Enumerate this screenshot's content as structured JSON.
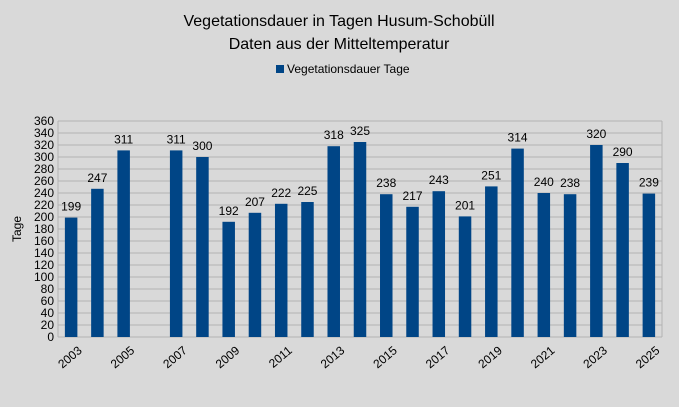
{
  "chart_data": {
    "type": "bar",
    "title": "Vegetationsdauer in Tagen Husum-Schobüll",
    "subtitle": "Daten aus der Mitteltemperatur",
    "ylabel": "Tage",
    "xlabel": "",
    "ylim": [
      0,
      360
    ],
    "ytick_step": 20,
    "grid": true,
    "legend_position": "top-center",
    "colors": {
      "bar": "#004586",
      "background": "#d9d9d9",
      "plot_background": "#d9d9d9",
      "grid": "#b3b3b3"
    },
    "categories": [
      2003,
      2004,
      2005,
      2006,
      2007,
      2008,
      2009,
      2010,
      2011,
      2012,
      2013,
      2014,
      2015,
      2016,
      2017,
      2018,
      2019,
      2020,
      2021,
      2022,
      2023,
      2024,
      2025
    ],
    "x_tick_labels": [
      "2003",
      "2005",
      "2007",
      "2009",
      "2011",
      "2013",
      "2015",
      "2017",
      "2019",
      "2021",
      "2023",
      "2025"
    ],
    "series": [
      {
        "name": "Vegetationsdauer Tage",
        "values": [
          199,
          247,
          311,
          null,
          311,
          300,
          192,
          207,
          222,
          225,
          318,
          325,
          238,
          217,
          243,
          201,
          251,
          314,
          240,
          238,
          320,
          290,
          239
        ]
      }
    ]
  }
}
